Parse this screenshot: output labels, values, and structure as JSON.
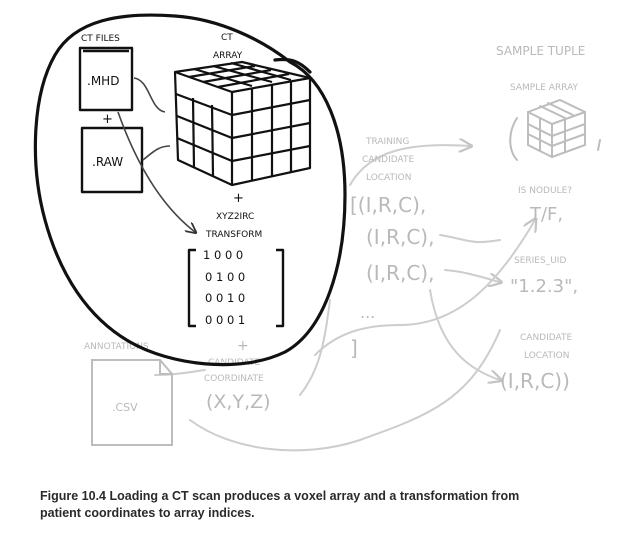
{
  "loaded": {
    "ct_files_label": "CT FILES",
    "mhd_label": ".MHD",
    "plus_1": "+",
    "raw_label": ".RAW",
    "ct_array_line1": "CT",
    "ct_array_line2": "ARRAY",
    "plus_2": "+",
    "transform_line1": "XYZ2IRC",
    "transform_line2": "TRANSFORM",
    "matrix_rows": [
      "1 0 0 0",
      "0 1 0 0",
      "0 0 1 0",
      "0 0 0 1"
    ]
  },
  "faded": {
    "plus_3": "+",
    "candidate_coordinate_line1": "CANDIDATE",
    "candidate_coordinate_line2": "COORDINATE",
    "xyz": "(X,Y,Z)",
    "annotations_label": "ANNOTATIONS",
    "csv_label": ".CSV",
    "training_line1": "TRAINING",
    "training_line2": "CANDIDATE",
    "training_line3": "LOCATION",
    "irc_rows": [
      "[(I,R,C),",
      "(I,R,C),",
      "(I,R,C),"
    ],
    "ellipsis": "...",
    "close_bracket": "]",
    "sample_tuple_label": "SAMPLE TUPLE",
    "sample_array_label": "SAMPLE ARRAY",
    "is_nodule_label": "IS NODULE?",
    "tf_value": "T/F,",
    "series_uid_label": "SERIES_UID",
    "series_uid_value": "\"1.2.3\",",
    "candidate_location_line1": "CANDIDATE",
    "candidate_location_line2": "LOCATION",
    "candidate_location_value": "(I,R,C))"
  },
  "caption": {
    "line1": "Figure 10.4   Loading a CT scan produces a voxel array and a transformation from",
    "line2": "patient coordinates to array indices."
  },
  "colors": {
    "ink": "#111111",
    "faded": "#b9b9b9",
    "caption": "#2a2a2a"
  }
}
